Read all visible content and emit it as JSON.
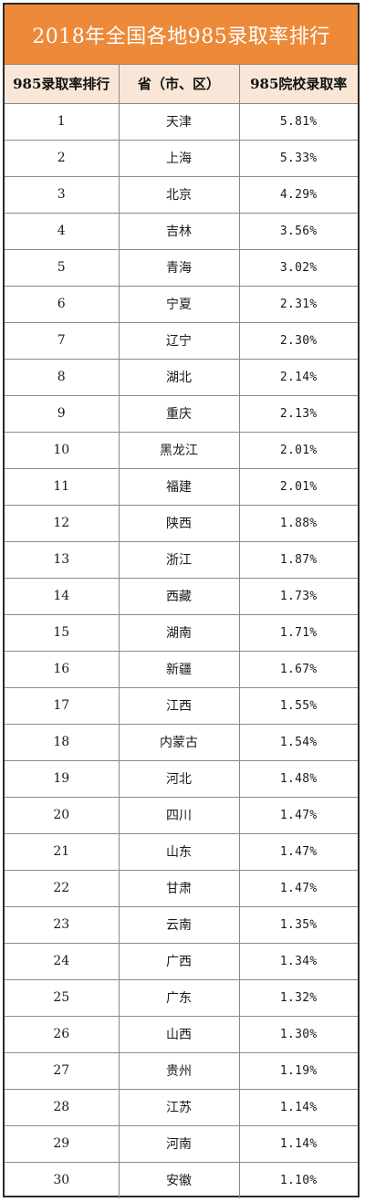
{
  "title": "2018年全国各地985录取率排行",
  "headers": {
    "rank": "985录取率排行",
    "province": "省（市、区）",
    "rate": "985院校录取率"
  },
  "rows": [
    {
      "rank": "1",
      "province": "天津",
      "rate": "5.81%"
    },
    {
      "rank": "2",
      "province": "上海",
      "rate": "5.33%"
    },
    {
      "rank": "3",
      "province": "北京",
      "rate": "4.29%"
    },
    {
      "rank": "4",
      "province": "吉林",
      "rate": "3.56%"
    },
    {
      "rank": "5",
      "province": "青海",
      "rate": "3.02%"
    },
    {
      "rank": "6",
      "province": "宁夏",
      "rate": "2.31%"
    },
    {
      "rank": "7",
      "province": "辽宁",
      "rate": "2.30%"
    },
    {
      "rank": "8",
      "province": "湖北",
      "rate": "2.14%"
    },
    {
      "rank": "9",
      "province": "重庆",
      "rate": "2.13%"
    },
    {
      "rank": "10",
      "province": "黑龙江",
      "rate": "2.01%"
    },
    {
      "rank": "11",
      "province": "福建",
      "rate": "2.01%"
    },
    {
      "rank": "12",
      "province": "陕西",
      "rate": "1.88%"
    },
    {
      "rank": "13",
      "province": "浙江",
      "rate": "1.87%"
    },
    {
      "rank": "14",
      "province": "西藏",
      "rate": "1.73%"
    },
    {
      "rank": "15",
      "province": "湖南",
      "rate": "1.71%"
    },
    {
      "rank": "16",
      "province": "新疆",
      "rate": "1.67%"
    },
    {
      "rank": "17",
      "province": "江西",
      "rate": "1.55%"
    },
    {
      "rank": "18",
      "province": "内蒙古",
      "rate": "1.54%"
    },
    {
      "rank": "19",
      "province": "河北",
      "rate": "1.48%"
    },
    {
      "rank": "20",
      "province": "四川",
      "rate": "1.47%"
    },
    {
      "rank": "21",
      "province": "山东",
      "rate": "1.47%"
    },
    {
      "rank": "22",
      "province": "甘肃",
      "rate": "1.47%"
    },
    {
      "rank": "23",
      "province": "云南",
      "rate": "1.35%"
    },
    {
      "rank": "24",
      "province": "广西",
      "rate": "1.34%"
    },
    {
      "rank": "25",
      "province": "广东",
      "rate": "1.32%"
    },
    {
      "rank": "26",
      "province": "山西",
      "rate": "1.30%"
    },
    {
      "rank": "27",
      "province": "贵州",
      "rate": "1.19%"
    },
    {
      "rank": "28",
      "province": "江苏",
      "rate": "1.14%"
    },
    {
      "rank": "29",
      "province": "河南",
      "rate": "1.14%"
    },
    {
      "rank": "30",
      "province": "安徽",
      "rate": "1.10%"
    }
  ],
  "colors": {
    "title_bg": "#ec8a3a",
    "title_text": "#ffffff",
    "header_bg": "#f9e6d6",
    "border": "#8a8a8a"
  }
}
